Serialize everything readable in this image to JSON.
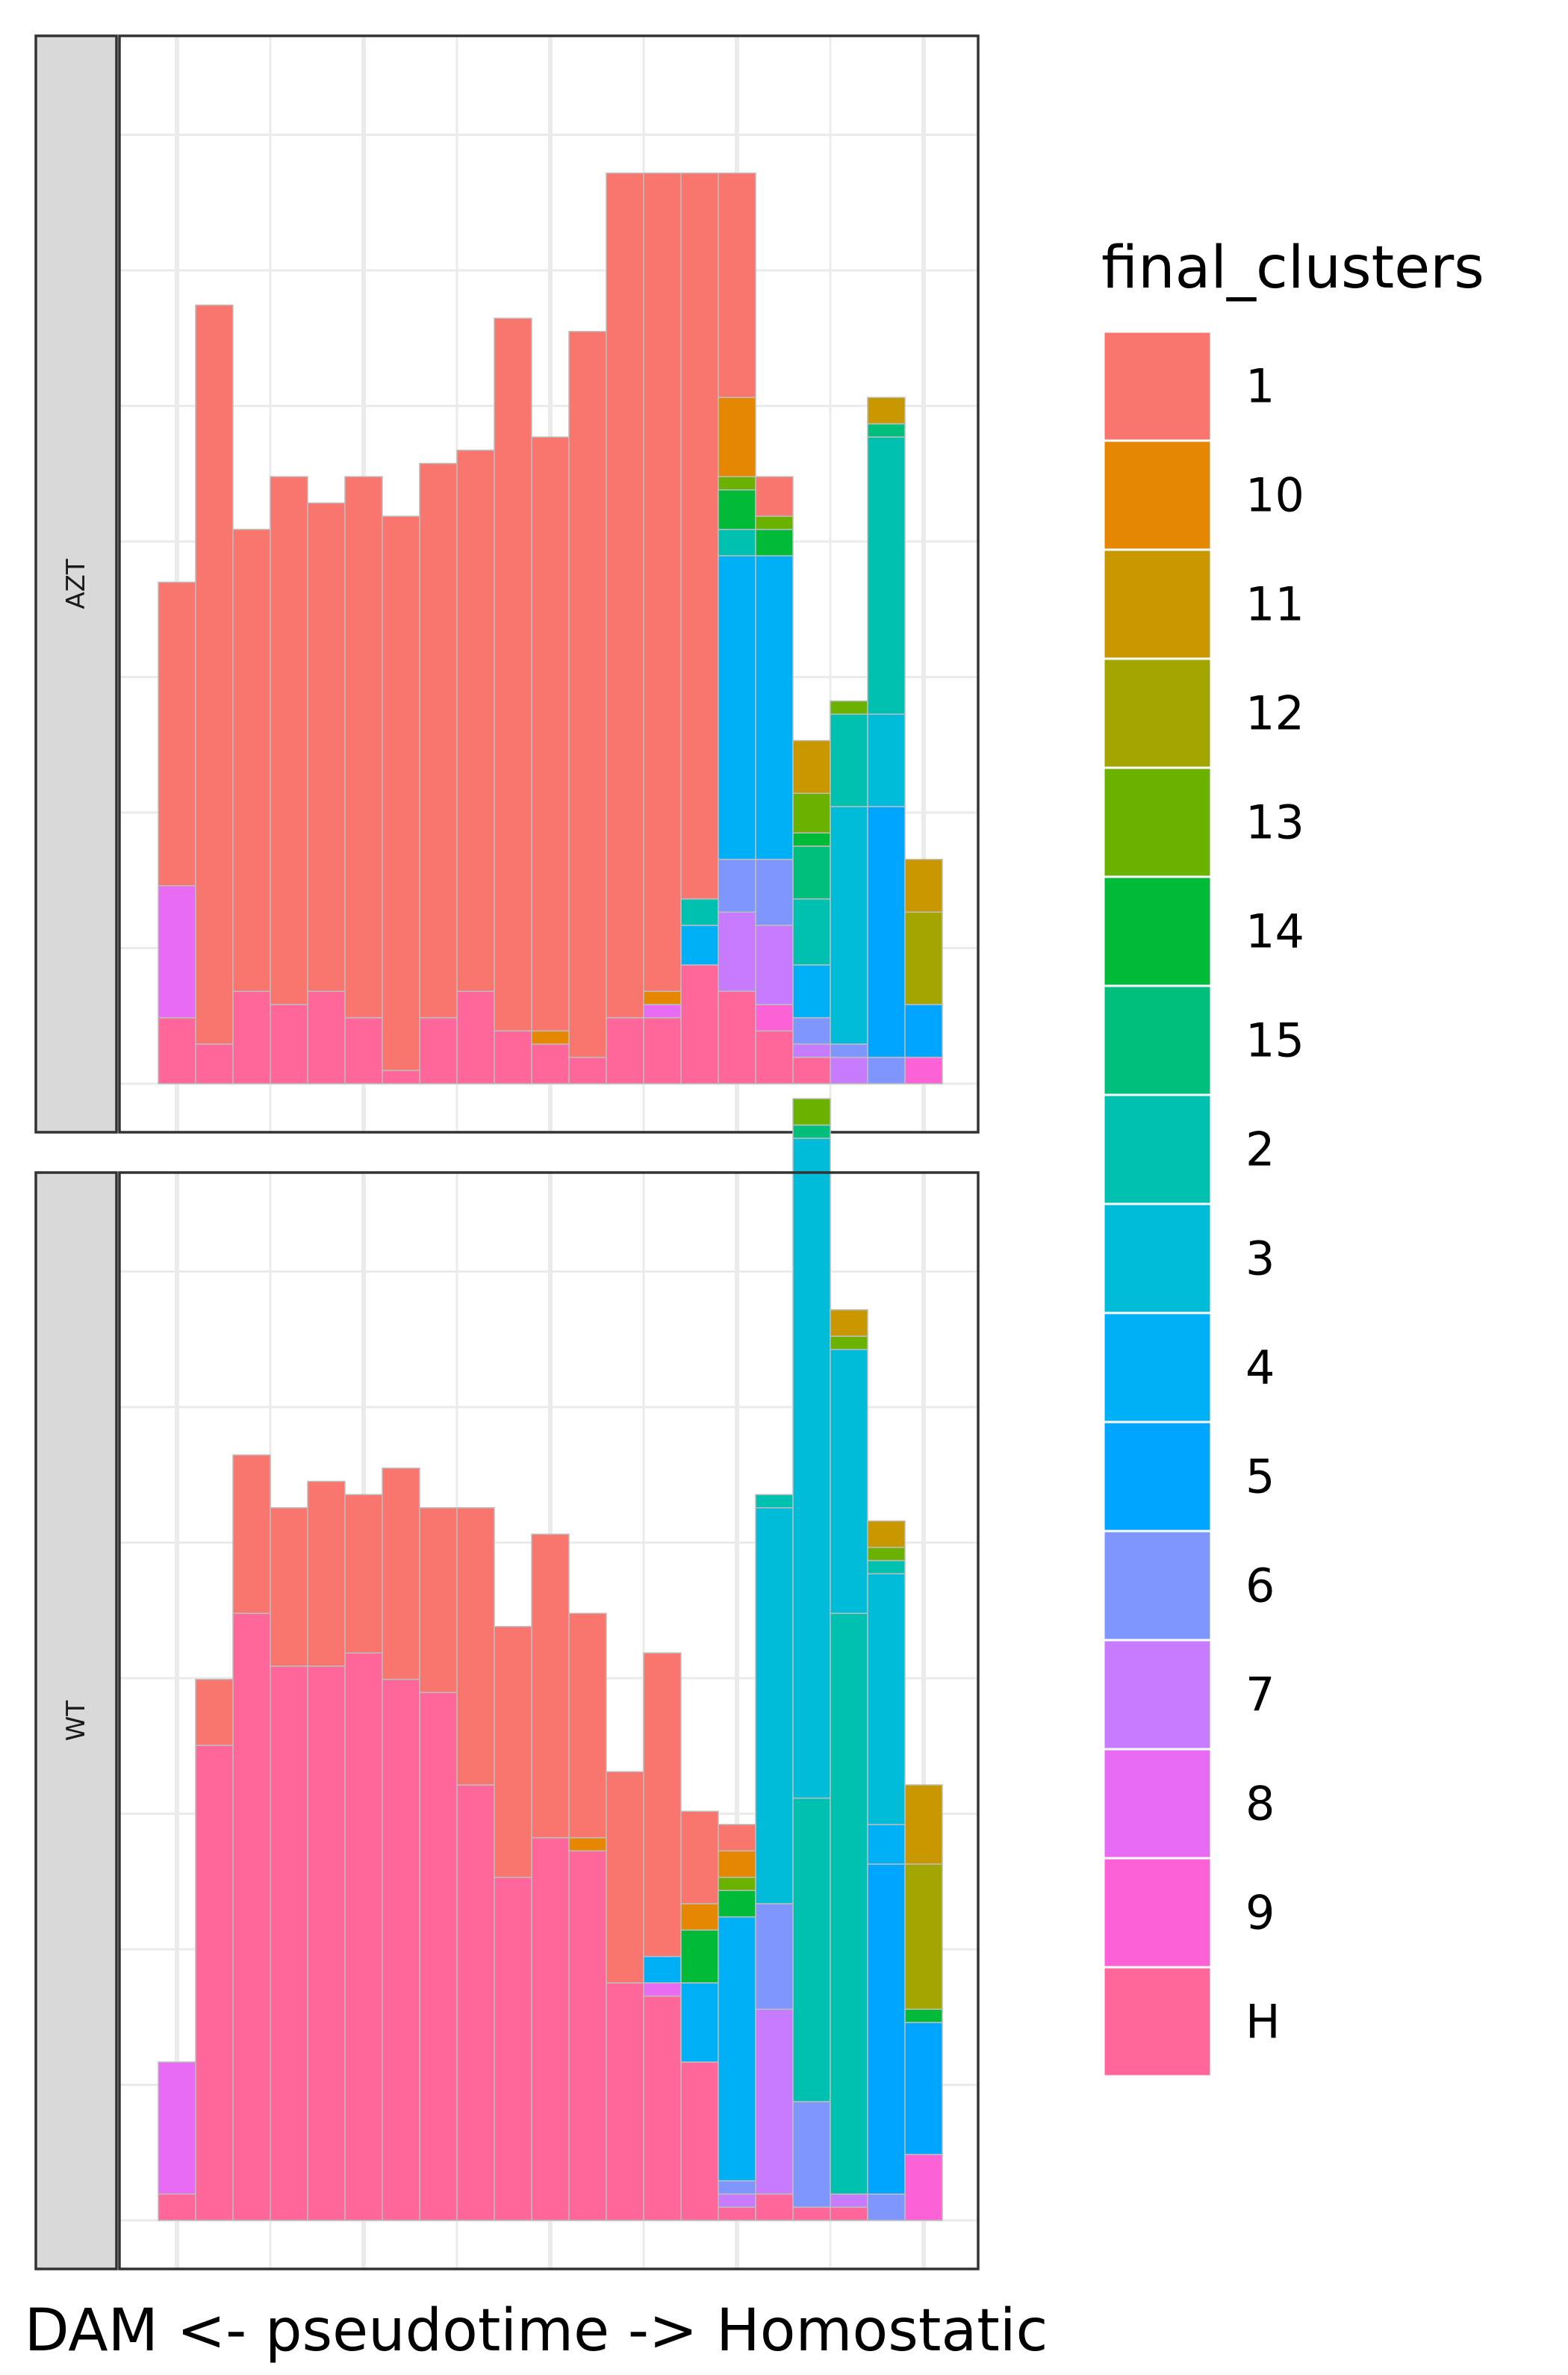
{
  "chart_data": {
    "type": "bar",
    "stacked": true,
    "xlabel": "DAM <- pseudotime -> Homostatic",
    "legend": {
      "title": "final_clusters",
      "position": "right"
    },
    "grid": true,
    "colors": {
      "1": "#F8766D",
      "10": "#E58700",
      "11": "#C99800",
      "12": "#A3A500",
      "13": "#6BB100",
      "14": "#00BA38",
      "15": "#00BF7D",
      "2": "#00C0AF",
      "3": "#00BCD8",
      "4": "#00B0F6",
      "5": "#00A5FF",
      "6": "#7F96FF",
      "7": "#C77CFF",
      "8": "#E76BF3",
      "9": "#FC61D5",
      "H": "#FF6699"
    },
    "legend_order": [
      "1",
      "10",
      "11",
      "12",
      "13",
      "14",
      "15",
      "2",
      "3",
      "4",
      "5",
      "6",
      "7",
      "8",
      "9",
      "H"
    ],
    "ylim": [
      0,
      39.7
    ],
    "bins": 21,
    "panels": [
      {
        "strip": "AZT",
        "stacks": [
          [
            [
              "H",
              2.5
            ],
            [
              "8",
              5
            ],
            [
              "1",
              11.5
            ]
          ],
          [
            [
              "H",
              1.5
            ],
            [
              "1",
              28
            ]
          ],
          [
            [
              "H",
              3.5
            ],
            [
              "1",
              17.5
            ]
          ],
          [
            [
              "H",
              3
            ],
            [
              "1",
              20
            ]
          ],
          [
            [
              "H",
              3.5
            ],
            [
              "1",
              18.5
            ]
          ],
          [
            [
              "H",
              2.5
            ],
            [
              "1",
              20.5
            ]
          ],
          [
            [
              "H",
              0.5
            ],
            [
              "1",
              21
            ]
          ],
          [
            [
              "H",
              2.5
            ],
            [
              "1",
              21
            ]
          ],
          [
            [
              "H",
              3.5
            ],
            [
              "1",
              20.5
            ]
          ],
          [
            [
              "H",
              2
            ],
            [
              "1",
              27
            ]
          ],
          [
            [
              "H",
              1.5
            ],
            [
              "10",
              0.5
            ],
            [
              "1",
              22.5
            ]
          ],
          [
            [
              "H",
              1
            ],
            [
              "1",
              27.5
            ]
          ],
          [
            [
              "H",
              2.5
            ],
            [
              "1",
              32
            ]
          ],
          [
            [
              "H",
              2.5
            ],
            [
              "8",
              0.5
            ],
            [
              "10",
              0.5
            ],
            [
              "1",
              31
            ]
          ],
          [
            [
              "H",
              4.5
            ],
            [
              "4",
              1.5
            ],
            [
              "2",
              1
            ],
            [
              "1",
              27.5
            ]
          ],
          [
            [
              "H",
              3.5
            ],
            [
              "7",
              3
            ],
            [
              "6",
              2
            ],
            [
              "4",
              11.5
            ],
            [
              "2",
              1
            ],
            [
              "14",
              1.5
            ],
            [
              "13",
              0.5
            ],
            [
              "10",
              3
            ],
            [
              "1",
              8.5
            ]
          ],
          [
            [
              "H",
              2
            ],
            [
              "9",
              1
            ],
            [
              "7",
              3
            ],
            [
              "6",
              2.5
            ],
            [
              "4",
              11.5
            ],
            [
              "14",
              1
            ],
            [
              "13",
              0.5
            ],
            [
              "1",
              1.5
            ]
          ],
          [
            [
              "H",
              1
            ],
            [
              "7",
              0.5
            ],
            [
              "6",
              1
            ],
            [
              "4",
              2
            ],
            [
              "2",
              2.5
            ],
            [
              "15",
              2
            ],
            [
              "14",
              0.5
            ],
            [
              "13",
              1.5
            ],
            [
              "11",
              2
            ]
          ],
          [
            [
              "7",
              1
            ],
            [
              "6",
              0.5
            ],
            [
              "3",
              9
            ],
            [
              "2",
              3.5
            ],
            [
              "13",
              0.5
            ]
          ],
          [
            [
              "6",
              1
            ],
            [
              "5",
              9.5
            ],
            [
              "3",
              3.5
            ],
            [
              "2",
              10.5
            ],
            [
              "15",
              0.5
            ],
            [
              "11",
              1
            ]
          ],
          [
            [
              "9",
              1
            ],
            [
              "5",
              2
            ],
            [
              "12",
              3.5
            ],
            [
              "11",
              2
            ]
          ]
        ]
      },
      {
        "strip": "WT",
        "stacks": [
          [
            [
              "H",
              1
            ],
            [
              "8",
              5
            ]
          ],
          [
            [
              "H",
              18
            ],
            [
              "1",
              2.5
            ]
          ],
          [
            [
              "H",
              23
            ],
            [
              "1",
              6
            ]
          ],
          [
            [
              "H",
              21
            ],
            [
              "1",
              6
            ]
          ],
          [
            [
              "H",
              21
            ],
            [
              "1",
              7
            ]
          ],
          [
            [
              "H",
              21.5
            ],
            [
              "1",
              6
            ]
          ],
          [
            [
              "H",
              20.5
            ],
            [
              "1",
              8
            ]
          ],
          [
            [
              "H",
              20
            ],
            [
              "1",
              7
            ]
          ],
          [
            [
              "H",
              16.5
            ],
            [
              "1",
              10.5
            ]
          ],
          [
            [
              "H",
              13
            ],
            [
              "1",
              9.5
            ]
          ],
          [
            [
              "H",
              14.5
            ],
            [
              "1",
              11.5
            ]
          ],
          [
            [
              "H",
              14
            ],
            [
              "10",
              0.5
            ],
            [
              "1",
              8.5
            ]
          ],
          [
            [
              "H",
              9
            ],
            [
              "1",
              8
            ]
          ],
          [
            [
              "H",
              8.5
            ],
            [
              "8",
              0.5
            ],
            [
              "4",
              1
            ],
            [
              "1",
              11.5
            ]
          ],
          [
            [
              "H",
              6
            ],
            [
              "4",
              3
            ],
            [
              "14",
              2
            ],
            [
              "10",
              1
            ],
            [
              "1",
              3.5
            ]
          ],
          [
            [
              "H",
              0.5
            ],
            [
              "7",
              0.5
            ],
            [
              "6",
              0.5
            ],
            [
              "4",
              10
            ],
            [
              "14",
              1
            ],
            [
              "13",
              0.5
            ],
            [
              "10",
              1
            ],
            [
              "1",
              1
            ]
          ],
          [
            [
              "H",
              1
            ],
            [
              "7",
              7
            ],
            [
              "6",
              4
            ],
            [
              "3",
              15
            ],
            [
              "2",
              0.5
            ]
          ],
          [
            [
              "H",
              0.5
            ],
            [
              "6",
              4
            ],
            [
              "2",
              11.5
            ],
            [
              "3",
              25
            ],
            [
              "15",
              0.5
            ],
            [
              "13",
              1
            ]
          ],
          [
            [
              "H",
              0.5
            ],
            [
              "7",
              0.5
            ],
            [
              "2",
              22
            ],
            [
              "3",
              10
            ],
            [
              "13",
              0.5
            ],
            [
              "11",
              1
            ]
          ],
          [
            [
              "6",
              1
            ],
            [
              "5",
              12.5
            ],
            [
              "4",
              1.5
            ],
            [
              "3",
              9.5
            ],
            [
              "2",
              0.5
            ],
            [
              "13",
              0.5
            ],
            [
              "11",
              1
            ]
          ],
          [
            [
              "9",
              2.5
            ],
            [
              "5",
              5
            ],
            [
              "14",
              0.5
            ],
            [
              "12",
              5.5
            ],
            [
              "11",
              3
            ]
          ]
        ]
      }
    ]
  }
}
